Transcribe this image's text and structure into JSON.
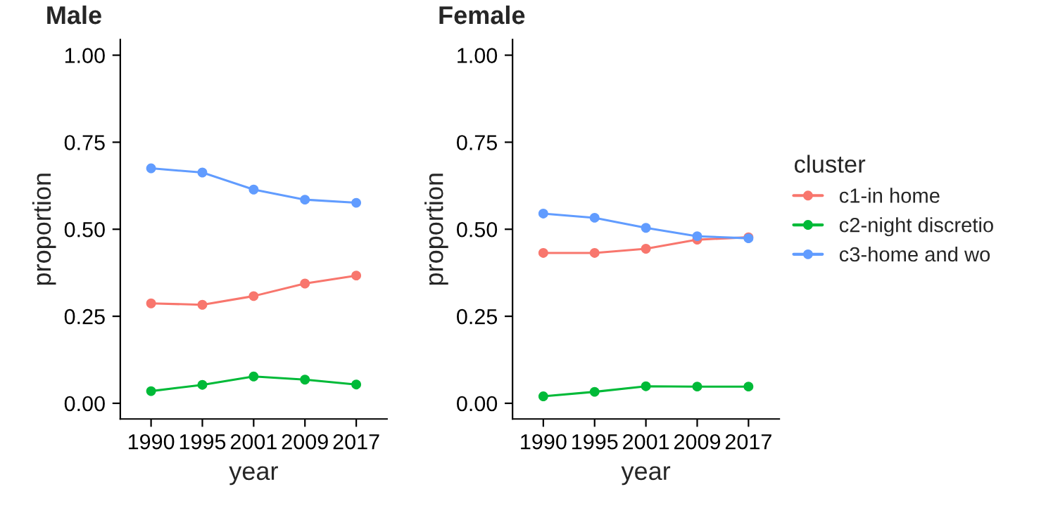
{
  "chart_data": [
    {
      "type": "line",
      "title": "Male",
      "xlabel": "year",
      "ylabel": "proportion",
      "categories": [
        "1990",
        "1995",
        "2001",
        "2009",
        "2017"
      ],
      "ylim": [
        -0.045,
        1.045
      ],
      "yticks": [
        {
          "value": 0,
          "label": "0.00"
        },
        {
          "value": 0.25,
          "label": "0.25"
        },
        {
          "value": 0.5,
          "label": "0.50"
        },
        {
          "value": 0.75,
          "label": "0.75"
        },
        {
          "value": 1,
          "label": "1.00"
        }
      ],
      "marker": "circle",
      "grid": false,
      "legend": false,
      "series": [
        {
          "color": "#f8766d",
          "values": [
            0.287,
            0.283,
            0.308,
            0.344,
            0.367
          ]
        },
        {
          "color": "#00ba38",
          "values": [
            0.035,
            0.053,
            0.077,
            0.068,
            0.054
          ]
        },
        {
          "color": "#619cff",
          "values": [
            0.675,
            0.663,
            0.614,
            0.585,
            0.576
          ]
        }
      ]
    },
    {
      "type": "line",
      "title": "Female",
      "xlabel": "year",
      "ylabel": "proportion",
      "legend_title": "cluster",
      "categories": [
        "1990",
        "1995",
        "2001",
        "2009",
        "2017"
      ],
      "ylim": [
        -0.045,
        1.045
      ],
      "yticks": [
        {
          "value": 0,
          "label": "0.00"
        },
        {
          "value": 0.25,
          "label": "0.25"
        },
        {
          "value": 0.5,
          "label": "0.50"
        },
        {
          "value": 0.75,
          "label": "0.75"
        },
        {
          "value": 1,
          "label": "1.00"
        }
      ],
      "marker": "circle",
      "grid": false,
      "legend": "right",
      "series": [
        {
          "name": "c1-in home",
          "color": "#f8766d",
          "values": [
            0.432,
            0.432,
            0.444,
            0.47,
            0.477
          ]
        },
        {
          "name": "c2-night discretio",
          "color": "#00ba38",
          "values": [
            0.02,
            0.033,
            0.049,
            0.048,
            0.048
          ]
        },
        {
          "name": "c3-home and wo",
          "color": "#619cff",
          "values": [
            0.545,
            0.533,
            0.504,
            0.48,
            0.474
          ]
        }
      ]
    }
  ]
}
